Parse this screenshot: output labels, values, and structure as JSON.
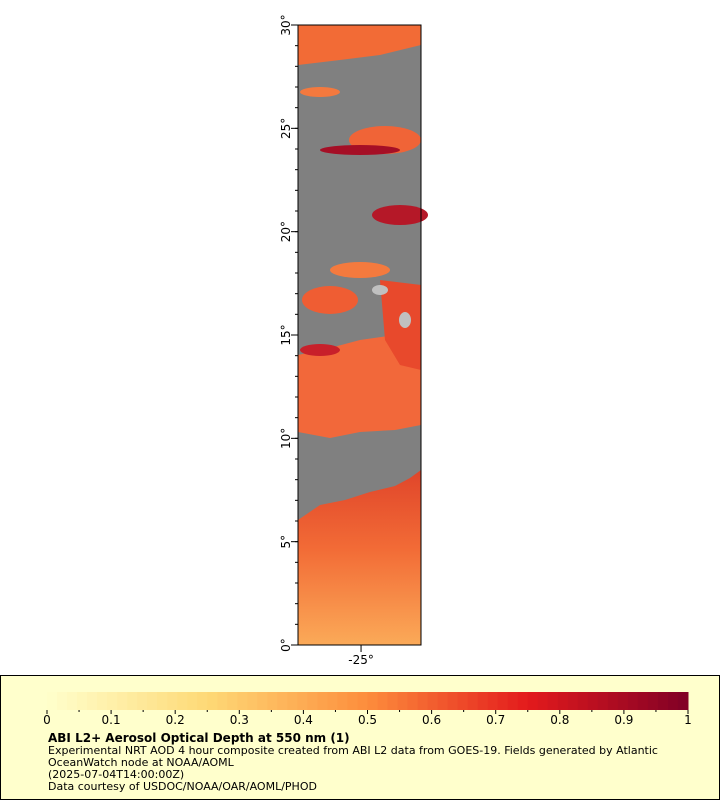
{
  "map": {
    "ylim": [
      0,
      30
    ],
    "yticks": [
      {
        "value": 0,
        "label": "0°"
      },
      {
        "value": 5,
        "label": "5°"
      },
      {
        "value": 10,
        "label": "10°"
      },
      {
        "value": 15,
        "label": "15°"
      },
      {
        "value": 20,
        "label": "20°"
      },
      {
        "value": 25,
        "label": "25°"
      },
      {
        "value": 30,
        "label": "30°"
      }
    ],
    "xlim": [
      -28.05,
      -22.1
    ],
    "xticks": [
      {
        "value": -25,
        "label": "-25°"
      }
    ]
  },
  "legend": {
    "colorbar": {
      "lim": [
        0,
        1
      ],
      "ticks": [
        0,
        0.1,
        0.2,
        0.3,
        0.4,
        0.5,
        0.6,
        0.7,
        0.8,
        0.9,
        1
      ],
      "colors": [
        "#ffffcc",
        "#fed976",
        "#fd8d3c",
        "#e31a1c",
        "#800026"
      ]
    },
    "title": "ABI L2+ Aerosol Optical Depth at 550 nm (1)",
    "lines": [
      "Experimental NRT AOD 4 hour composite created from ABI L2 data from GOES-19. Fields generated by Atlantic",
      "OceanWatch node at NOAA/AOML",
      "(2025-07-04T14:00:00Z)",
      "Data courtesy of USDOC/NOAA/OAR/AOML/PHOD"
    ]
  }
}
